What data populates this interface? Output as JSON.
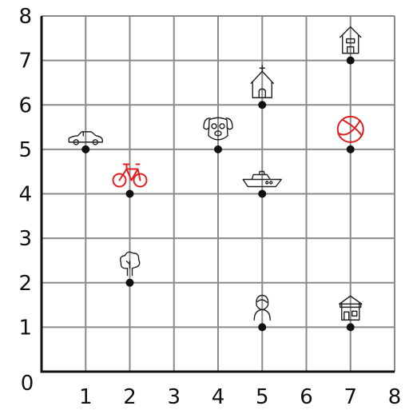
{
  "chart_data": {
    "type": "scatter",
    "xlim": [
      0,
      8
    ],
    "ylim": [
      0,
      8
    ],
    "x_ticks": [
      "0",
      "1",
      "2",
      "3",
      "4",
      "5",
      "6",
      "7",
      "8"
    ],
    "y_ticks": [
      "1",
      "2",
      "3",
      "4",
      "5",
      "6",
      "7",
      "8"
    ],
    "grid": true,
    "points": [
      {
        "x": 1,
        "y": 5,
        "icon": "car-icon",
        "color": "#222222"
      },
      {
        "x": 2,
        "y": 4,
        "icon": "bicycle-icon",
        "color": "#e02020"
      },
      {
        "x": 2,
        "y": 2,
        "icon": "tree-icon",
        "color": "#222222"
      },
      {
        "x": 4,
        "y": 5,
        "icon": "dog-icon",
        "color": "#222222"
      },
      {
        "x": 5,
        "y": 6,
        "icon": "church-icon",
        "color": "#222222"
      },
      {
        "x": 5,
        "y": 4,
        "icon": "boat-icon",
        "color": "#222222"
      },
      {
        "x": 5,
        "y": 1,
        "icon": "person-icon",
        "color": "#222222"
      },
      {
        "x": 7,
        "y": 7,
        "icon": "house-icon",
        "color": "#222222"
      },
      {
        "x": 7,
        "y": 5,
        "icon": "ball-icon",
        "color": "#e02020"
      },
      {
        "x": 7,
        "y": 1,
        "icon": "store-icon",
        "color": "#222222"
      }
    ]
  }
}
